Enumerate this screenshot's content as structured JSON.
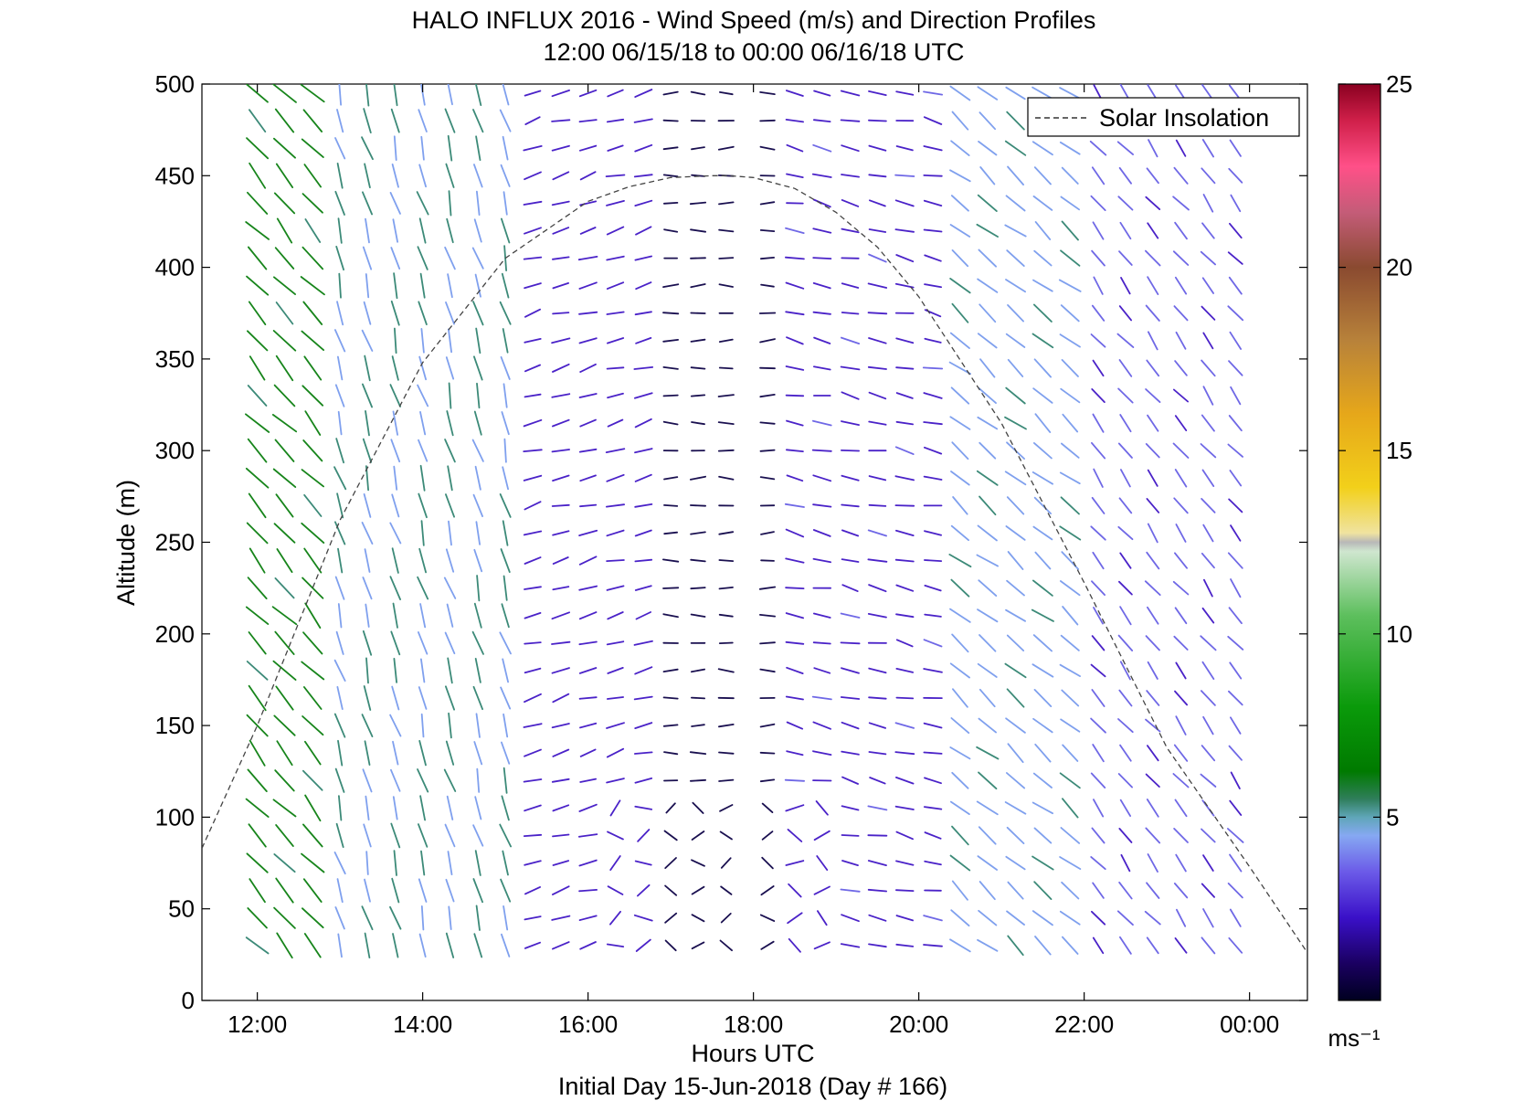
{
  "chart_data": {
    "type": "vector-field",
    "title": "HALO INFLUX 2016 - Wind Speed (m/s) and Direction Profiles",
    "subtitle": "12:00 06/15/18 to 00:00 06/16/18  UTC",
    "xlabel": "Hours UTC",
    "ylabel": "Altitude (m)",
    "footer": "Initial Day 15-Jun-2018 (Day # 166)",
    "colorbar_unit": "ms⁻¹",
    "xlim": [
      11.33,
      24.7
    ],
    "ylim": [
      0,
      500
    ],
    "x_ticks": [
      12,
      14,
      16,
      18,
      20,
      22,
      24
    ],
    "x_tick_labels": [
      "12:00",
      "14:00",
      "16:00",
      "18:00",
      "20:00",
      "22:00",
      "00:00"
    ],
    "y_ticks": [
      0,
      50,
      100,
      150,
      200,
      250,
      300,
      350,
      400,
      450,
      500
    ],
    "colorbar_range": [
      0,
      25
    ],
    "colorbar_ticks": [
      5,
      10,
      15,
      20,
      25
    ],
    "legend": {
      "label": "Solar Insolation",
      "style": "dashed",
      "placement": "top-right"
    },
    "grid": false,
    "series": [
      {
        "name": "Solar Insolation",
        "style": "dashed",
        "x": [
          11.33,
          12,
          13,
          14,
          15,
          16,
          16.5,
          17,
          17.5,
          17.7,
          18,
          18.5,
          19,
          19.5,
          20,
          21,
          22,
          23,
          24,
          24.7
        ],
        "y": [
          83,
          150,
          262,
          348,
          405,
          436,
          444,
          449,
          450,
          450,
          449,
          443,
          430,
          411,
          384,
          315,
          228,
          138,
          73,
          26
        ]
      }
    ],
    "wind_field": {
      "times": [
        12.0,
        12.33,
        12.67,
        13.0,
        13.33,
        13.67,
        14.0,
        14.33,
        14.67,
        15.0,
        15.33,
        15.67,
        16.0,
        16.33,
        16.67,
        17.0,
        17.33,
        17.67,
        18.17,
        18.5,
        18.83,
        19.17,
        19.5,
        19.83,
        20.17,
        20.5,
        20.83,
        21.17,
        21.5,
        21.83,
        22.17,
        22.5,
        22.83,
        23.17,
        23.5,
        23.83
      ],
      "altitudes": [
        30,
        45,
        60,
        75,
        90,
        105,
        120,
        135,
        150,
        165,
        180,
        195,
        210,
        225,
        240,
        255,
        270,
        285,
        300,
        315,
        330,
        345,
        360,
        375,
        390,
        405,
        420,
        435,
        450,
        465,
        480,
        495
      ],
      "speed_note": "m/s, colour coded on colorbar",
      "profiles": [
        {
          "time_range": "12:00-13:00",
          "direction_deg": 315,
          "speed": 8
        },
        {
          "time_range": "13:00-15:30",
          "direction_deg": 350,
          "speed": 6
        },
        {
          "time_range": "15:30-17:00",
          "direction_deg": 250,
          "speed": 2.5
        },
        {
          "time_range": "17:00-18:30",
          "direction_deg": 270,
          "speed": 1
        },
        {
          "time_range": "18:30-20:30",
          "direction_deg": 280,
          "speed": 2.5
        },
        {
          "time_range": "20:30-22:00",
          "direction_deg": 310,
          "speed": 6
        },
        {
          "time_range": "22:00-00:00",
          "direction_deg": 320,
          "speed": 3.5
        }
      ]
    }
  }
}
